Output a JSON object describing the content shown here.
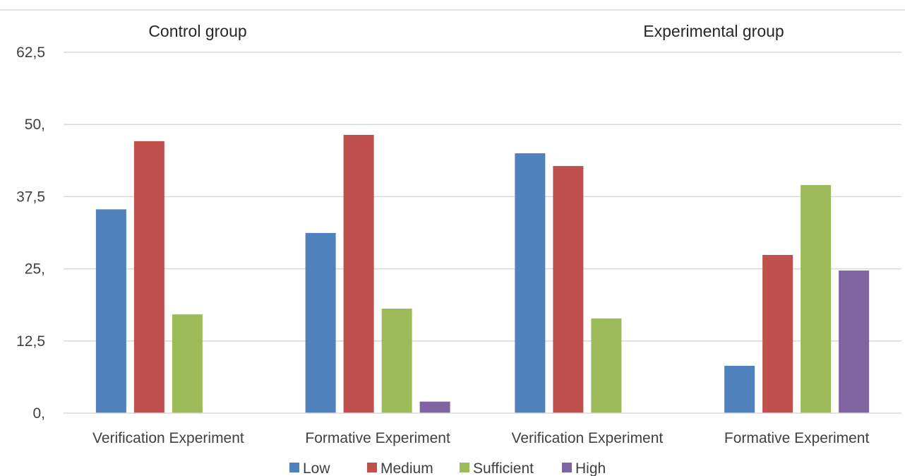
{
  "chart_data": {
    "type": "bar",
    "title": "",
    "xlabel": "",
    "ylabel": "",
    "ylim": [
      0,
      62.5
    ],
    "yticks": [
      "0,",
      "12,5",
      "25,",
      "37,5",
      "50,",
      "62,5"
    ],
    "ytick_values": [
      0,
      12.5,
      25,
      37.5,
      50,
      62.5
    ],
    "grid": true,
    "legend_position": "bottom",
    "groups": [
      "Control group",
      "Experimental group"
    ],
    "categories": [
      "Verification Experiment",
      "Formative Experiment",
      "Verification Experiment",
      "Formative Experiment"
    ],
    "series": [
      {
        "name": "Low",
        "color": "#4f81bd",
        "values": [
          35.3,
          31.2,
          45.0,
          8.2
        ]
      },
      {
        "name": "Medium",
        "color": "#c0504d",
        "values": [
          47.1,
          48.2,
          42.8,
          27.4
        ]
      },
      {
        "name": "Sufficient",
        "color": "#9bbb59",
        "values": [
          17.1,
          18.1,
          16.4,
          39.5
        ]
      },
      {
        "name": "High",
        "color": "#8064a2",
        "values": [
          0,
          2.0,
          0,
          24.7
        ]
      }
    ]
  }
}
